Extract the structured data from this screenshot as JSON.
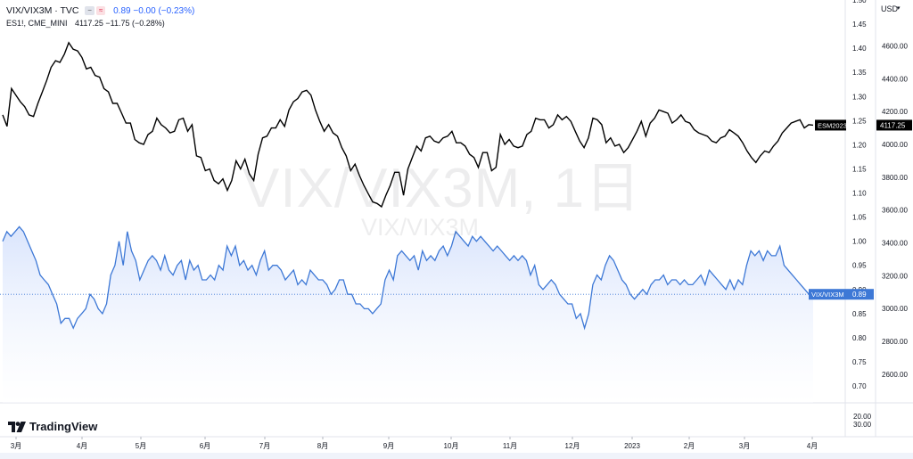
{
  "legend": {
    "main_symbol": "VIX/VIX3M · TVC",
    "main_values": "0.89 −0.00 (−0.23%)",
    "compare_symbol": "ES1!, CME_MINI",
    "compare_values": "4117.25 −11.75 (−0.28%)"
  },
  "currency": "USD",
  "brand": "TradingView",
  "watermark": {
    "main": "VIX/VIX3M, 1日",
    "sub": "VIX/VIX3M"
  },
  "colors": {
    "vix": "#3d78d6",
    "es": "#000000",
    "fill": "#e8efff"
  },
  "chart_data": [
    {
      "type": "line",
      "x_ticks": [
        "3月",
        "4月",
        "5月",
        "6月",
        "7月",
        "8月",
        "9月",
        "10月",
        "11月",
        "12月",
        "2023",
        "2月",
        "3月",
        "4月"
      ],
      "left_axis": {
        "label": "VIX/VIX3M",
        "range": [
          0.665,
          1.5
        ],
        "ticks": [
          0.7,
          0.75,
          0.8,
          0.85,
          0.9,
          0.95,
          1.0,
          1.05,
          1.1,
          1.15,
          1.2,
          1.25,
          1.3,
          1.35,
          1.4,
          1.45,
          1.5
        ]
      },
      "right_axis": {
        "label": "USD",
        "range": [
          2425,
          4880
        ],
        "ticks": [
          2600,
          2800,
          3000,
          3200,
          3400,
          3600,
          3800,
          4000,
          4200,
          4400,
          4600
        ]
      },
      "series": [
        {
          "name": "ESM2023",
          "axis": "right",
          "last_value": 4117.25,
          "last_label": "4117.25",
          "values": [
            4180,
            4110,
            4340,
            4300,
            4260,
            4230,
            4180,
            4170,
            4250,
            4320,
            4390,
            4470,
            4510,
            4500,
            4550,
            4620,
            4580,
            4570,
            4530,
            4460,
            4470,
            4420,
            4410,
            4340,
            4320,
            4250,
            4250,
            4190,
            4130,
            4130,
            4030,
            4010,
            4000,
            4060,
            4080,
            4160,
            4120,
            4100,
            4070,
            4080,
            4150,
            4160,
            4080,
            4120,
            3930,
            3920,
            3840,
            3850,
            3780,
            3760,
            3790,
            3720,
            3780,
            3900,
            3850,
            3910,
            3820,
            3780,
            3940,
            4040,
            4050,
            4100,
            4100,
            4150,
            4110,
            4210,
            4260,
            4280,
            4320,
            4330,
            4300,
            4210,
            4140,
            4080,
            4120,
            4070,
            4050,
            3980,
            3930,
            3840,
            3880,
            3810,
            3750,
            3700,
            3650,
            3640,
            3620,
            3690,
            3750,
            3830,
            3830,
            3690,
            3850,
            3920,
            3990,
            3960,
            4040,
            4050,
            4020,
            4010,
            4040,
            4050,
            4080,
            4010,
            4010,
            3990,
            3940,
            3920,
            3860,
            3950,
            3950,
            3840,
            3860,
            4060,
            4000,
            4030,
            3990,
            3980,
            3990,
            4060,
            4080,
            4160,
            4150,
            4150,
            4100,
            4120,
            4180,
            4150,
            4170,
            4140,
            4080,
            4020,
            3980,
            4040,
            4160,
            4150,
            4120,
            4010,
            4040,
            3990,
            4000,
            3950,
            3980,
            4030,
            4080,
            4140,
            4050,
            4130,
            4160,
            4210,
            4200,
            4190,
            4130,
            4150,
            4180,
            4140,
            4130,
            4090,
            4070,
            4060,
            4050,
            4020,
            4010,
            4040,
            4050,
            4090,
            4070,
            4050,
            4010,
            3960,
            3920,
            3890,
            3930,
            3960,
            3950,
            3990,
            4020,
            4070,
            4100,
            4130,
            4140,
            4150,
            4100,
            4120,
            4117.25
          ]
        },
        {
          "name": "VIX/VIX3M",
          "axis": "left",
          "last_value": 0.89,
          "last_label": "0.89",
          "values": [
            1.0,
            1.02,
            1.01,
            1.02,
            1.03,
            1.02,
            1.0,
            0.98,
            0.96,
            0.93,
            0.92,
            0.91,
            0.89,
            0.87,
            0.83,
            0.84,
            0.84,
            0.82,
            0.84,
            0.85,
            0.86,
            0.89,
            0.88,
            0.86,
            0.85,
            0.87,
            0.93,
            0.95,
            1.0,
            0.95,
            1.02,
            0.98,
            0.96,
            0.92,
            0.94,
            0.96,
            0.97,
            0.96,
            0.94,
            0.97,
            0.94,
            0.93,
            0.95,
            0.96,
            0.92,
            0.96,
            0.94,
            0.95,
            0.92,
            0.92,
            0.93,
            0.92,
            0.95,
            0.94,
            0.99,
            0.97,
            0.99,
            0.95,
            0.96,
            0.94,
            0.95,
            0.93,
            0.96,
            0.98,
            0.94,
            0.95,
            0.95,
            0.94,
            0.92,
            0.93,
            0.94,
            0.91,
            0.92,
            0.91,
            0.94,
            0.93,
            0.92,
            0.92,
            0.91,
            0.89,
            0.9,
            0.92,
            0.92,
            0.89,
            0.89,
            0.87,
            0.87,
            0.86,
            0.86,
            0.85,
            0.86,
            0.87,
            0.92,
            0.94,
            0.92,
            0.97,
            0.98,
            0.97,
            0.96,
            0.97,
            0.94,
            0.98,
            0.96,
            0.97,
            0.96,
            0.98,
            0.99,
            0.97,
            0.99,
            1.02,
            1.01,
            1.0,
            0.99,
            1.01,
            1.0,
            1.01,
            1.0,
            0.99,
            0.98,
            0.99,
            0.98,
            0.97,
            0.96,
            0.97,
            0.96,
            0.97,
            0.96,
            0.93,
            0.95,
            0.91,
            0.9,
            0.91,
            0.92,
            0.91,
            0.89,
            0.88,
            0.87,
            0.87,
            0.84,
            0.85,
            0.82,
            0.85,
            0.91,
            0.93,
            0.92,
            0.95,
            0.97,
            0.96,
            0.94,
            0.92,
            0.91,
            0.89,
            0.88,
            0.89,
            0.9,
            0.89,
            0.91,
            0.92,
            0.92,
            0.93,
            0.91,
            0.92,
            0.92,
            0.91,
            0.92,
            0.91,
            0.91,
            0.92,
            0.93,
            0.91,
            0.94,
            0.93,
            0.92,
            0.91,
            0.9,
            0.92,
            0.9,
            0.92,
            0.91,
            0.95,
            0.98,
            0.97,
            0.98,
            0.96,
            0.98,
            0.97,
            0.97,
            0.99,
            0.95,
            0.94,
            0.93,
            0.92,
            0.91,
            0.9,
            0.89,
            0.89
          ]
        }
      ],
      "y_right_secondary": {
        "label": "",
        "ticks": [
          20.0,
          30.0
        ]
      }
    }
  ]
}
